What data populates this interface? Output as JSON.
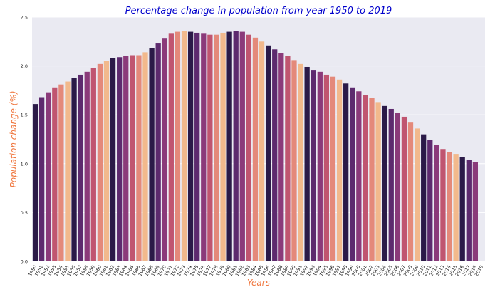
{
  "chart_data": {
    "type": "bar",
    "title": "Percentage change in population from year 1950 to 2019",
    "xlabel": "Years",
    "ylabel": "Population change (%)",
    "ylim": [
      0,
      2.5
    ],
    "yticks": [
      "0.0",
      "0.5",
      "1.0",
      "1.5",
      "2.0",
      "2.5"
    ],
    "grid": true,
    "categories": [
      "1950",
      "1951",
      "1952",
      "1953",
      "1954",
      "1955",
      "1956",
      "1957",
      "1958",
      "1959",
      "1960",
      "1961",
      "1962",
      "1963",
      "1964",
      "1965",
      "1966",
      "1967",
      "1968",
      "1969",
      "1970",
      "1971",
      "1972",
      "1973",
      "1974",
      "1975",
      "1976",
      "1977",
      "1978",
      "1979",
      "1980",
      "1981",
      "1982",
      "1983",
      "1984",
      "1985",
      "1986",
      "1987",
      "1988",
      "1989",
      "1990",
      "1991",
      "1992",
      "1993",
      "1994",
      "1995",
      "1996",
      "1997",
      "1998",
      "1999",
      "2000",
      "2001",
      "2002",
      "2003",
      "2004",
      "2005",
      "2006",
      "2007",
      "2008",
      "2009",
      "2010",
      "2011",
      "2012",
      "2013",
      "2014",
      "2015",
      "2016",
      "2017",
      "2018",
      "2019"
    ],
    "values": [
      1.61,
      1.68,
      1.73,
      1.78,
      1.81,
      1.84,
      1.88,
      1.91,
      1.94,
      1.98,
      2.02,
      2.05,
      2.08,
      2.09,
      2.1,
      2.11,
      2.11,
      2.14,
      2.18,
      2.23,
      2.28,
      2.33,
      2.35,
      2.36,
      2.35,
      2.34,
      2.33,
      2.32,
      2.32,
      2.34,
      2.35,
      2.36,
      2.35,
      2.32,
      2.29,
      2.25,
      2.21,
      2.17,
      2.13,
      2.1,
      2.06,
      2.02,
      1.99,
      1.96,
      1.94,
      1.91,
      1.89,
      1.86,
      1.82,
      1.78,
      1.74,
      1.7,
      1.67,
      1.63,
      1.59,
      1.56,
      1.52,
      1.48,
      1.42,
      1.36,
      1.3,
      1.24,
      1.19,
      1.15,
      1.12,
      1.1,
      1.07,
      1.04,
      1.02,
      0.0
    ],
    "palette": [
      "#2b1a48",
      "#5d2a6e",
      "#8b3a7a",
      "#c05570",
      "#e4897a",
      "#f2b98c"
    ],
    "colors": {
      "title": "#0000cc",
      "axis_label": "#f07840",
      "plot_background": "#eaeaf2",
      "grid": "#ffffff"
    }
  }
}
